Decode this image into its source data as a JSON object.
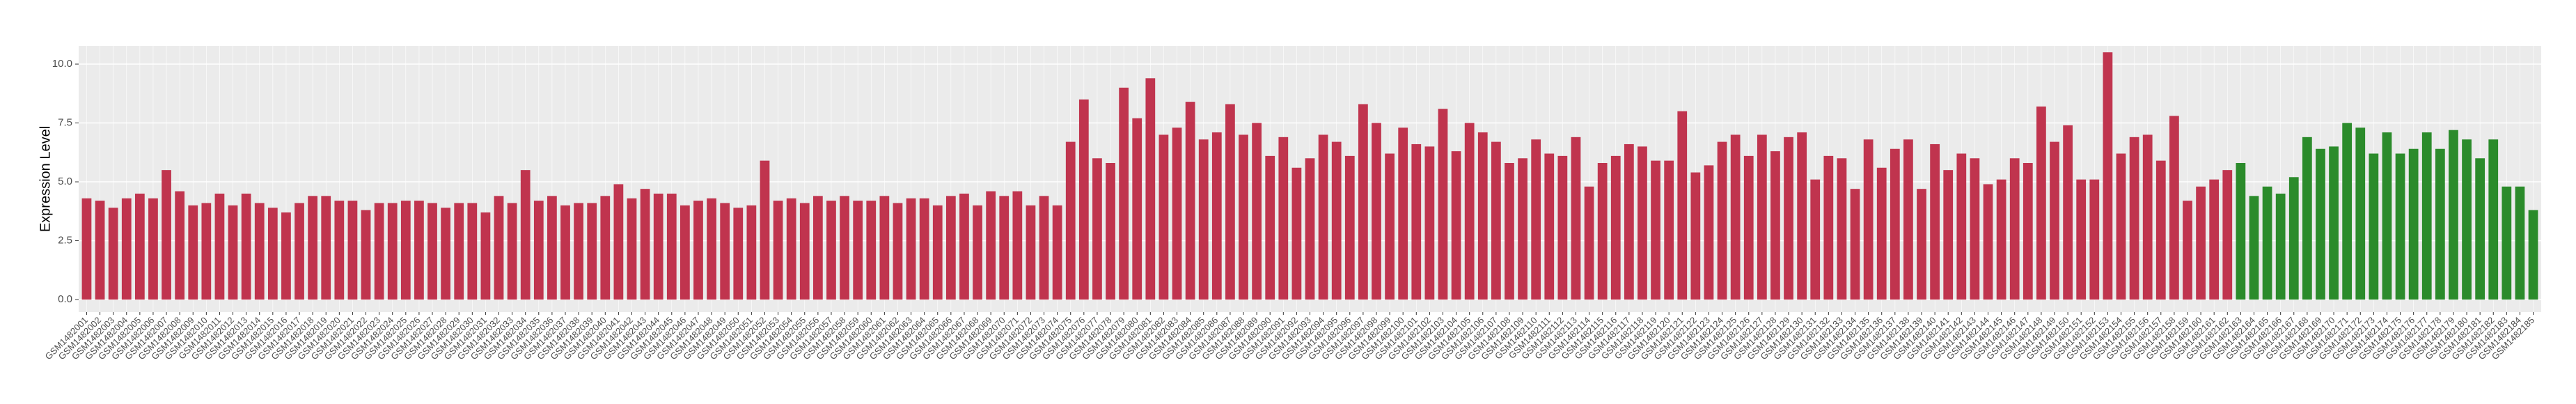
{
  "chart_data": {
    "type": "bar",
    "y_label": "Expression Level",
    "categories": [
      "GSM1482001",
      "GSM1482002",
      "GSM1482003",
      "GSM1482004",
      "GSM1482005",
      "GSM1482006",
      "GSM1482007",
      "GSM1482008",
      "GSM1482009",
      "GSM1482010",
      "GSM1482011",
      "GSM1482012",
      "GSM1482013",
      "GSM1482014",
      "GSM1482015",
      "GSM1482016",
      "GSM1482017",
      "GSM1482018",
      "GSM1482019",
      "GSM1482020",
      "GSM1482021",
      "GSM1482022",
      "GSM1482023",
      "GSM1482024",
      "GSM1482025",
      "GSM1482026",
      "GSM1482027",
      "GSM1482028",
      "GSM1482029",
      "GSM1482030",
      "GSM1482031",
      "GSM1482032",
      "GSM1482033",
      "GSM1482034",
      "GSM1482035",
      "GSM1482036",
      "GSM1482037",
      "GSM1482038",
      "GSM1482039",
      "GSM1482040",
      "GSM1482041",
      "GSM1482042",
      "GSM1482043",
      "GSM1482044",
      "GSM1482045",
      "GSM1482046",
      "GSM1482047",
      "GSM1482048",
      "GSM1482049",
      "GSM1482050",
      "GSM1482051",
      "GSM1482052",
      "GSM1482053",
      "GSM1482054",
      "GSM1482055",
      "GSM1482056",
      "GSM1482057",
      "GSM1482058",
      "GSM1482059",
      "GSM1482060",
      "GSM1482061",
      "GSM1482062",
      "GSM1482063",
      "GSM1482064",
      "GSM1482065",
      "GSM1482066",
      "GSM1482067",
      "GSM1482068",
      "GSM1482069",
      "GSM1482070",
      "GSM1482071",
      "GSM1482072",
      "GSM1482073",
      "GSM1482074",
      "GSM1482075",
      "GSM1482076",
      "GSM1482077",
      "GSM1482078",
      "GSM1482079",
      "GSM1482080",
      "GSM1482081",
      "GSM1482082",
      "GSM1482083",
      "GSM1482084",
      "GSM1482085",
      "GSM1482086",
      "GSM1482087",
      "GSM1482088",
      "GSM1482089",
      "GSM1482090",
      "GSM1482091",
      "GSM1482092",
      "GSM1482093",
      "GSM1482094",
      "GSM1482095",
      "GSM1482096",
      "GSM1482097",
      "GSM1482098",
      "GSM1482099",
      "GSM1482100",
      "GSM1482101",
      "GSM1482102",
      "GSM1482103",
      "GSM1482104",
      "GSM1482105",
      "GSM1482106",
      "GSM1482107",
      "GSM1482108",
      "GSM1482109",
      "GSM1482110",
      "GSM1482111",
      "GSM1482112",
      "GSM1482113",
      "GSM1482114",
      "GSM1482115",
      "GSM1482116",
      "GSM1482117",
      "GSM1482118",
      "GSM1482119",
      "GSM1482120",
      "GSM1482121",
      "GSM1482122",
      "GSM1482123",
      "GSM1482124",
      "GSM1482125",
      "GSM1482126",
      "GSM1482127",
      "GSM1482128",
      "GSM1482129",
      "GSM1482130",
      "GSM1482131",
      "GSM1482132",
      "GSM1482133",
      "GSM1482134",
      "GSM1482135",
      "GSM1482136",
      "GSM1482137",
      "GSM1482138",
      "GSM1482139",
      "GSM1482140",
      "GSM1482141",
      "GSM1482142",
      "GSM1482143",
      "GSM1482144",
      "GSM1482145",
      "GSM1482146",
      "GSM1482147",
      "GSM1482148",
      "GSM1482149",
      "GSM1482150",
      "GSM1482151",
      "GSM1482152",
      "GSM1482153",
      "GSM1482154",
      "GSM1482155",
      "GSM1482156",
      "GSM1482157",
      "GSM1482158",
      "GSM1482159",
      "GSM1482160",
      "GSM1482161",
      "GSM1482162",
      "GSM1482163",
      "GSM1482164",
      "GSM1482165",
      "GSM1482166",
      "GSM1482167",
      "GSM1482168",
      "GSM1482169",
      "GSM1482170",
      "GSM1482171",
      "GSM1482172",
      "GSM1482173",
      "GSM1482174",
      "GSM1482175",
      "GSM1482176",
      "GSM1482177",
      "GSM1482178",
      "GSM1482179",
      "GSM1482180",
      "GSM1482181",
      "GSM1482182",
      "GSM1482183",
      "GSM1482184",
      "GSM1482185"
    ],
    "values": [
      4.3,
      4.2,
      3.9,
      4.3,
      4.5,
      4.3,
      5.5,
      4.6,
      4.0,
      4.1,
      4.5,
      4.0,
      4.5,
      4.1,
      3.9,
      3.7,
      4.1,
      4.4,
      4.4,
      4.2,
      4.2,
      3.8,
      4.1,
      4.1,
      4.2,
      4.2,
      4.1,
      3.9,
      4.1,
      4.1,
      3.7,
      4.4,
      4.1,
      5.5,
      4.2,
      4.4,
      4.0,
      4.1,
      4.1,
      4.4,
      4.9,
      4.3,
      4.7,
      4.5,
      4.5,
      4.0,
      4.2,
      4.3,
      4.1,
      3.9,
      4.0,
      5.9,
      4.2,
      4.3,
      4.1,
      4.4,
      4.2,
      4.4,
      4.2,
      4.2,
      4.4,
      4.1,
      4.3,
      4.3,
      4.0,
      4.4,
      4.5,
      4.0,
      4.6,
      4.4,
      4.6,
      4.0,
      4.4,
      4.0,
      6.7,
      8.5,
      6.0,
      5.8,
      9.0,
      7.7,
      9.4,
      7.0,
      7.3,
      8.4,
      6.8,
      7.1,
      8.3,
      7.0,
      7.5,
      6.1,
      6.9,
      5.6,
      6.0,
      7.0,
      6.7,
      6.1,
      8.3,
      7.5,
      6.2,
      7.3,
      6.6,
      6.5,
      8.1,
      6.3,
      7.5,
      7.1,
      6.7,
      5.8,
      6.0,
      6.8,
      6.2,
      6.1,
      6.9,
      4.8,
      5.8,
      6.1,
      6.6,
      6.5,
      5.9,
      5.9,
      8.0,
      5.4,
      5.7,
      6.7,
      7.0,
      6.1,
      7.0,
      6.3,
      6.9,
      7.1,
      5.1,
      6.1,
      6.0,
      4.7,
      6.8,
      5.6,
      6.4,
      6.8,
      4.7,
      6.6,
      5.5,
      6.2,
      6.0,
      4.9,
      5.1,
      6.0,
      5.8,
      8.2,
      6.7,
      7.4,
      5.1,
      5.1,
      10.5,
      6.2,
      6.9,
      7.0,
      5.9,
      7.8,
      4.2,
      4.8,
      5.1,
      5.5,
      5.8,
      4.4,
      4.8,
      4.5,
      5.2,
      6.9,
      6.4,
      6.5,
      7.5,
      7.3,
      6.2,
      7.1,
      6.2,
      6.4,
      7.1,
      6.4,
      7.2,
      6.8,
      6.0,
      6.8,
      4.8,
      4.8,
      3.8
    ],
    "colors": [
      "#c0344e",
      "#c0344e",
      "#c0344e",
      "#c0344e",
      "#c0344e",
      "#c0344e",
      "#c0344e",
      "#c0344e",
      "#c0344e",
      "#c0344e",
      "#c0344e",
      "#c0344e",
      "#c0344e",
      "#c0344e",
      "#c0344e",
      "#c0344e",
      "#c0344e",
      "#c0344e",
      "#c0344e",
      "#c0344e",
      "#c0344e",
      "#c0344e",
      "#c0344e",
      "#c0344e",
      "#c0344e",
      "#c0344e",
      "#c0344e",
      "#c0344e",
      "#c0344e",
      "#c0344e",
      "#c0344e",
      "#c0344e",
      "#c0344e",
      "#c0344e",
      "#c0344e",
      "#c0344e",
      "#c0344e",
      "#c0344e",
      "#c0344e",
      "#c0344e",
      "#c0344e",
      "#c0344e",
      "#c0344e",
      "#c0344e",
      "#c0344e",
      "#c0344e",
      "#c0344e",
      "#c0344e",
      "#c0344e",
      "#c0344e",
      "#c0344e",
      "#c0344e",
      "#c0344e",
      "#c0344e",
      "#c0344e",
      "#c0344e",
      "#c0344e",
      "#c0344e",
      "#c0344e",
      "#c0344e",
      "#c0344e",
      "#c0344e",
      "#c0344e",
      "#c0344e",
      "#c0344e",
      "#c0344e",
      "#c0344e",
      "#c0344e",
      "#c0344e",
      "#c0344e",
      "#c0344e",
      "#c0344e",
      "#c0344e",
      "#c0344e",
      "#c0344e",
      "#c0344e",
      "#c0344e",
      "#c0344e",
      "#c0344e",
      "#c0344e",
      "#c0344e",
      "#c0344e",
      "#c0344e",
      "#c0344e",
      "#c0344e",
      "#c0344e",
      "#c0344e",
      "#c0344e",
      "#c0344e",
      "#c0344e",
      "#c0344e",
      "#c0344e",
      "#c0344e",
      "#c0344e",
      "#c0344e",
      "#c0344e",
      "#c0344e",
      "#c0344e",
      "#c0344e",
      "#c0344e",
      "#c0344e",
      "#c0344e",
      "#c0344e",
      "#c0344e",
      "#c0344e",
      "#c0344e",
      "#c0344e",
      "#c0344e",
      "#c0344e",
      "#c0344e",
      "#c0344e",
      "#c0344e",
      "#c0344e",
      "#c0344e",
      "#c0344e",
      "#c0344e",
      "#c0344e",
      "#c0344e",
      "#c0344e",
      "#c0344e",
      "#c0344e",
      "#c0344e",
      "#c0344e",
      "#c0344e",
      "#c0344e",
      "#c0344e",
      "#c0344e",
      "#c0344e",
      "#c0344e",
      "#c0344e",
      "#c0344e",
      "#c0344e",
      "#c0344e",
      "#c0344e",
      "#c0344e",
      "#c0344e",
      "#c0344e",
      "#c0344e",
      "#c0344e",
      "#c0344e",
      "#c0344e",
      "#c0344e",
      "#c0344e",
      "#c0344e",
      "#c0344e",
      "#c0344e",
      "#c0344e",
      "#c0344e",
      "#c0344e",
      "#c0344e",
      "#c0344e",
      "#c0344e",
      "#c0344e",
      "#c0344e",
      "#c0344e",
      "#c0344e",
      "#c0344e",
      "#c0344e",
      "#c0344e",
      "#c0344e",
      "#c0344e",
      "#c0344e",
      "#2b8b2b",
      "#2b8b2b",
      "#2b8b2b",
      "#2b8b2b",
      "#2b8b2b",
      "#2b8b2b",
      "#2b8b2b",
      "#2b8b2b",
      "#2b8b2b",
      "#2b8b2b",
      "#2b8b2b",
      "#2b8b2b",
      "#2b8b2b",
      "#2b8b2b",
      "#2b8b2b",
      "#2b8b2b",
      "#2b8b2b",
      "#2b8b2b",
      "#2b8b2b",
      "#2b8b2b",
      "#2b8b2b",
      "#2b8b2b",
      "#2b8b2b"
    ],
    "ylim": [
      -0.53,
      10.77
    ],
    "yticks": [
      {
        "value": 0,
        "label": "0.0"
      },
      {
        "value": 2.5,
        "label": "2.5"
      },
      {
        "value": 5,
        "label": "5.0"
      },
      {
        "value": 7.5,
        "label": "7.5"
      },
      {
        "value": 10,
        "label": "10.0"
      }
    ],
    "grid": true
  }
}
